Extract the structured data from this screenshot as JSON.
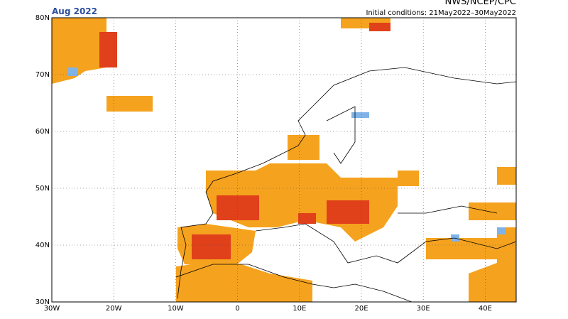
{
  "header": {
    "title": "Aug 2022",
    "source": "NWS/NCEP/CPC",
    "subtitle": "Initial conditions: 21May2022–30May2022"
  },
  "lat_labels": [
    "80N",
    "70N",
    "60N",
    "50N",
    "40N",
    "30N"
  ],
  "lon_labels": [
    "30W",
    "20W",
    "10W",
    "0",
    "10E",
    "20E",
    "30E",
    "40E"
  ]
}
